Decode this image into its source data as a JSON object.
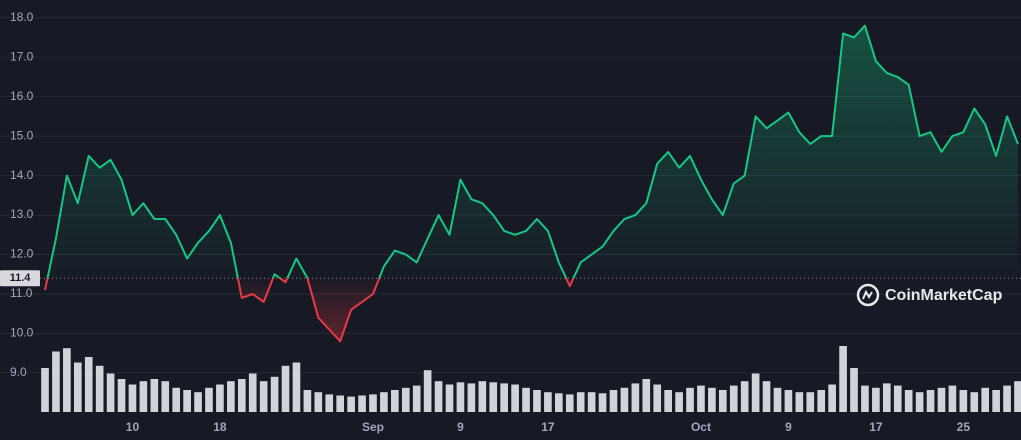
{
  "chart_data": {
    "type": "line",
    "categories": [
      null,
      null,
      null,
      null,
      null,
      null,
      null,
      null,
      "10",
      null,
      null,
      null,
      null,
      null,
      null,
      null,
      "18",
      null,
      null,
      null,
      null,
      null,
      null,
      null,
      null,
      null,
      null,
      null,
      null,
      null,
      "Sep",
      null,
      null,
      null,
      null,
      null,
      null,
      null,
      "9",
      null,
      null,
      null,
      null,
      null,
      null,
      null,
      "17",
      null,
      null,
      null,
      null,
      null,
      null,
      null,
      null,
      null,
      null,
      null,
      null,
      null,
      "Oct",
      null,
      null,
      null,
      null,
      null,
      null,
      null,
      "9",
      null,
      null,
      null,
      null,
      null,
      null,
      null,
      "17",
      null,
      null,
      null,
      null,
      null,
      null,
      null,
      "25",
      null,
      null,
      null,
      null,
      null
    ],
    "values": [
      11.1,
      12.4,
      14.0,
      13.3,
      14.5,
      14.2,
      14.4,
      13.9,
      13.0,
      13.3,
      12.9,
      12.9,
      12.5,
      11.9,
      12.3,
      12.6,
      13.0,
      12.3,
      10.9,
      11.0,
      10.8,
      11.5,
      11.3,
      11.9,
      11.4,
      10.4,
      10.1,
      9.8,
      10.6,
      10.8,
      11.0,
      11.7,
      12.1,
      12.0,
      11.8,
      12.4,
      13.0,
      12.5,
      13.9,
      13.4,
      13.3,
      13.0,
      12.6,
      12.5,
      12.6,
      12.9,
      12.6,
      11.8,
      11.2,
      11.8,
      12.0,
      12.2,
      12.6,
      12.9,
      13.0,
      13.3,
      14.3,
      14.6,
      14.2,
      14.5,
      13.9,
      13.4,
      13.0,
      13.8,
      14.0,
      15.5,
      15.2,
      15.4,
      15.6,
      15.1,
      14.8,
      15.0,
      15.0,
      17.6,
      17.5,
      17.8,
      16.9,
      16.6,
      16.5,
      16.3,
      15.0,
      15.1,
      14.6,
      15.0,
      15.1,
      15.7,
      15.3,
      14.5,
      15.5,
      14.8
    ],
    "color": "#16c784",
    "negative_color": "#ea3943",
    "baseline": 11.4,
    "volume": {
      "color": "#e6e8ee",
      "values": [
        40,
        55,
        58,
        45,
        50,
        42,
        35,
        30,
        25,
        28,
        30,
        28,
        22,
        20,
        18,
        22,
        25,
        28,
        30,
        35,
        28,
        32,
        42,
        45,
        20,
        18,
        16,
        15,
        14,
        15,
        16,
        18,
        20,
        22,
        24,
        38,
        28,
        25,
        27,
        26,
        28,
        27,
        26,
        25,
        22,
        20,
        18,
        17,
        16,
        18,
        18,
        17,
        20,
        22,
        26,
        30,
        25,
        20,
        18,
        22,
        24,
        22,
        20,
        24,
        28,
        35,
        28,
        22,
        20,
        18,
        18,
        20,
        25,
        60,
        40,
        24,
        22,
        26,
        24,
        20,
        18,
        20,
        22,
        24,
        20,
        18,
        22,
        20,
        24,
        28
      ]
    },
    "ylim": [
      7.3,
      18.45
    ],
    "yticks": [
      {
        "value": 9,
        "label": "9.0"
      },
      {
        "value": 10,
        "label": "10.0"
      },
      {
        "value": 11,
        "label": "11.0"
      },
      {
        "value": 12,
        "label": "12.0"
      },
      {
        "value": 13,
        "label": "13.0"
      },
      {
        "value": 14,
        "label": "14.0"
      },
      {
        "value": 15,
        "label": "15.0"
      },
      {
        "value": 16,
        "label": "16.0"
      },
      {
        "value": 17,
        "label": "17.0"
      },
      {
        "value": 18,
        "label": "18.0"
      }
    ],
    "grid": true,
    "watermark": "CoinMarketCap"
  }
}
